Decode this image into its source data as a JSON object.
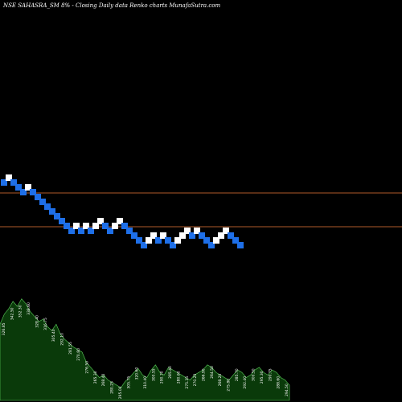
{
  "chart_data": {
    "type": "renko",
    "title": "NSE SAHASRA_SM 8% - Closing Daily data Renko charts MunafaSutra.com",
    "colors": {
      "background": "#000000",
      "up_brick": "#ffffff",
      "down_brick": "#1e6fe8",
      "level_line": "#b05a2a",
      "volume_fill": "#0a3a0a",
      "volume_stroke": "#5dd05d"
    },
    "bricks": [
      {
        "level": 10,
        "dir": "down"
      },
      {
        "level": 11,
        "dir": "up"
      },
      {
        "level": 10,
        "dir": "down"
      },
      {
        "level": 9,
        "dir": "down"
      },
      {
        "level": 8,
        "dir": "down"
      },
      {
        "level": 9,
        "dir": "up"
      },
      {
        "level": 8,
        "dir": "down"
      },
      {
        "level": 7,
        "dir": "down"
      },
      {
        "level": 6,
        "dir": "down"
      },
      {
        "level": 5,
        "dir": "down"
      },
      {
        "level": 4,
        "dir": "down"
      },
      {
        "level": 3,
        "dir": "down"
      },
      {
        "level": 2,
        "dir": "down"
      },
      {
        "level": 1,
        "dir": "down"
      },
      {
        "level": 0,
        "dir": "down"
      },
      {
        "level": 1,
        "dir": "up"
      },
      {
        "level": 0,
        "dir": "down"
      },
      {
        "level": 1,
        "dir": "up"
      },
      {
        "level": 0,
        "dir": "down"
      },
      {
        "level": 1,
        "dir": "up"
      },
      {
        "level": 2,
        "dir": "up"
      },
      {
        "level": 1,
        "dir": "down"
      },
      {
        "level": 0,
        "dir": "down"
      },
      {
        "level": 1,
        "dir": "up"
      },
      {
        "level": 2,
        "dir": "up"
      },
      {
        "level": 1,
        "dir": "down"
      },
      {
        "level": 0,
        "dir": "down"
      },
      {
        "level": -1,
        "dir": "down"
      },
      {
        "level": -2,
        "dir": "down"
      },
      {
        "level": -3,
        "dir": "down"
      },
      {
        "level": -2,
        "dir": "up"
      },
      {
        "level": -1,
        "dir": "up"
      },
      {
        "level": -2,
        "dir": "down"
      },
      {
        "level": -1,
        "dir": "up"
      },
      {
        "level": -2,
        "dir": "down"
      },
      {
        "level": -3,
        "dir": "down"
      },
      {
        "level": -2,
        "dir": "up"
      },
      {
        "level": -1,
        "dir": "up"
      },
      {
        "level": 0,
        "dir": "up"
      },
      {
        "level": -1,
        "dir": "down"
      },
      {
        "level": 0,
        "dir": "up"
      },
      {
        "level": -1,
        "dir": "down"
      },
      {
        "level": -2,
        "dir": "down"
      },
      {
        "level": -3,
        "dir": "down"
      },
      {
        "level": -2,
        "dir": "up"
      },
      {
        "level": -1,
        "dir": "up"
      },
      {
        "level": 0,
        "dir": "up"
      },
      {
        "level": -1,
        "dir": "down"
      },
      {
        "level": -2,
        "dir": "down"
      },
      {
        "level": -3,
        "dir": "down"
      }
    ],
    "level_lines": [
      8,
      1
    ],
    "volume": [
      0.6,
      0.68,
      0.72,
      0.78,
      0.74,
      0.8,
      0.76,
      0.7,
      0.66,
      0.62,
      0.64,
      0.58,
      0.55,
      0.6,
      0.52,
      0.48,
      0.45,
      0.42,
      0.4,
      0.38,
      0.3,
      0.26,
      0.22,
      0.18,
      0.2,
      0.16,
      0.14,
      0.12,
      0.1,
      0.15,
      0.18,
      0.22,
      0.25,
      0.2,
      0.18,
      0.24,
      0.28,
      0.22,
      0.2,
      0.26,
      0.24,
      0.22,
      0.2,
      0.18,
      0.16,
      0.2,
      0.22,
      0.24,
      0.28,
      0.26,
      0.22,
      0.2,
      0.18,
      0.16,
      0.2,
      0.24,
      0.22,
      0.18,
      0.2,
      0.24,
      0.26,
      0.22,
      0.2,
      0.24,
      0.22,
      0.18,
      0.16,
      0.12
    ],
    "volume_labels": [
      "326.85",
      "342.50",
      "352.30",
      "338.60",
      "328.40",
      "316.75",
      "305.40",
      "292.10",
      "281.55",
      "270.80",
      "276.50",
      "265.30",
      "268.40",
      "280.25",
      "295.00",
      "305.75",
      "320.60",
      "310.40",
      "300.55",
      "290.70",
      "285.40",
      "280.60",
      "275.35",
      "270.20",
      "266.90",
      "264.50",
      "268.20",
      "275.80",
      "285.70",
      "292.40",
      "300.50",
      "295.30",
      "290.75",
      "288.60",
      "294.50"
    ]
  }
}
